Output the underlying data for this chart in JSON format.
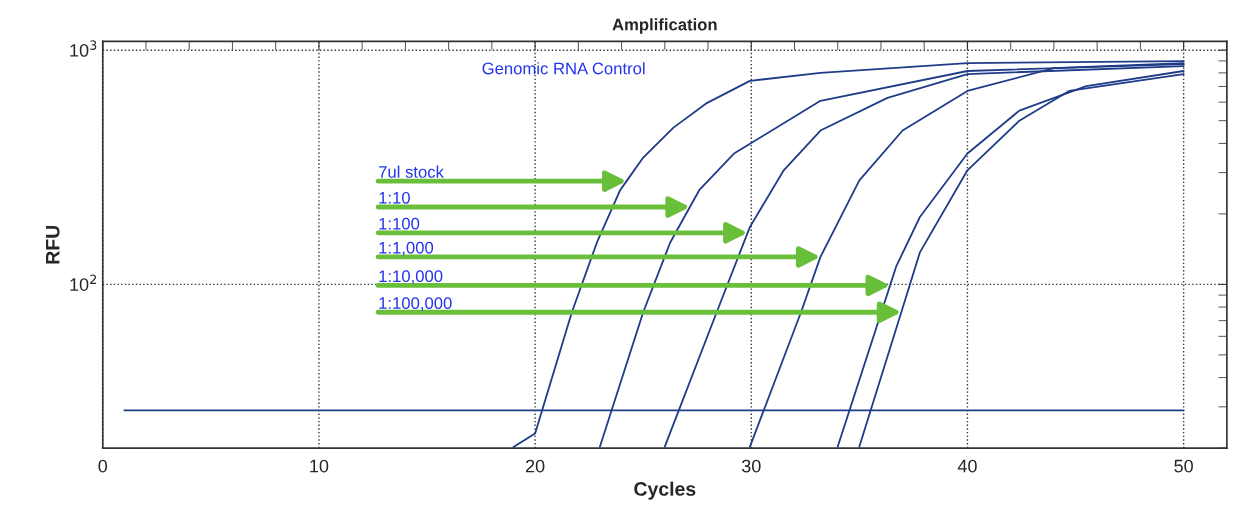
{
  "chart_data": {
    "type": "line",
    "title": "Amplification",
    "xlabel": "Cycles",
    "ylabel": "RFU",
    "log": "y",
    "grid": true,
    "marker": "none",
    "xlim": [
      0,
      52
    ],
    "ylim": [
      20,
      1090
    ],
    "xticks": [
      0,
      {
        "value": 2,
        "label": null
      },
      {
        "value": 4,
        "label": null
      },
      {
        "value": 6,
        "label": null
      },
      {
        "value": 8,
        "label": null
      },
      10,
      {
        "value": 12,
        "label": null
      },
      {
        "value": 14,
        "label": null
      },
      {
        "value": 16,
        "label": null
      },
      {
        "value": 18,
        "label": null
      },
      20,
      {
        "value": 22,
        "label": null
      },
      {
        "value": 24,
        "label": null
      },
      {
        "value": 26,
        "label": null
      },
      {
        "value": 28,
        "label": null
      },
      30,
      {
        "value": 32,
        "label": null
      },
      {
        "value": 34,
        "label": null
      },
      {
        "value": 36,
        "label": null
      },
      {
        "value": 38,
        "label": null
      },
      40,
      {
        "value": 42,
        "label": null
      },
      {
        "value": 44,
        "label": null
      },
      {
        "value": 46,
        "label": null
      },
      {
        "value": 48,
        "label": null
      },
      50,
      {
        "value": 52,
        "label": null
      }
    ],
    "yticks": [
      {
        "value": 20,
        "label": null
      },
      {
        "value": 30,
        "label": null
      },
      {
        "value": 40,
        "label": null
      },
      {
        "value": 50,
        "label": null
      },
      {
        "value": 60,
        "label": null
      },
      {
        "value": 70,
        "label": null
      },
      {
        "value": 80,
        "label": null
      },
      {
        "value": 90,
        "label": null
      },
      {
        "value": 100,
        "label": "10$^{2}$"
      },
      {
        "value": 200,
        "label": null
      },
      {
        "value": 300,
        "label": null
      },
      {
        "value": 400,
        "label": null
      },
      {
        "value": 500,
        "label": null
      },
      {
        "value": 600,
        "label": null
      },
      {
        "value": 700,
        "label": null
      },
      {
        "value": 800,
        "label": null
      },
      {
        "value": 900,
        "label": null
      },
      {
        "value": 1000,
        "label": "10$^{3}$"
      }
    ],
    "series": [
      {
        "color": "#1f3c88",
        "x": [
          19.0,
          20.0,
          21.7,
          22.86,
          23.94,
          24.23,
          25.0,
          26.4,
          27.96,
          29.94,
          33.2,
          40,
          50
        ],
        "values": [
          20.2,
          23.1,
          76,
          151,
          253,
          276,
          348,
          467,
          596,
          740,
          800,
          881,
          898
        ]
      },
      {
        "color": "#1f3c88",
        "x": [
          23.0,
          25.0,
          26.25,
          27.16,
          27.6,
          29.2,
          33.2,
          40,
          50
        ],
        "values": [
          20.3,
          76,
          151,
          214,
          253,
          362,
          608,
          815,
          872
        ]
      },
      {
        "color": "#1f3c88",
        "x": [
          26.0,
          28.4,
          29.83,
          29.94,
          31.5,
          33.2,
          36.3,
          40,
          50
        ],
        "values": [
          20.3,
          76,
          166,
          176,
          307,
          454,
          626,
          791,
          855
        ]
      },
      {
        "color": "#1f3c88",
        "x": [
          29.94,
          32.3,
          33.2,
          35.0,
          37.0,
          40,
          44,
          50
        ],
        "values": [
          20.3,
          76,
          131,
          278,
          454,
          670,
          839,
          881
        ]
      },
      {
        "color": "#1f3c88",
        "x": [
          34.0,
          36.42,
          36.7,
          37.8,
          40,
          42.4,
          45.5,
          50
        ],
        "values": [
          20.3,
          99,
          119,
          194,
          362,
          552,
          703,
          815
        ]
      },
      {
        "color": "#1f3c88",
        "x": [
          35.0,
          36.94,
          37.8,
          40,
          42.4,
          44.7,
          50
        ],
        "values": [
          20.3,
          76,
          137,
          307,
          500,
          670,
          791
        ]
      },
      {
        "color": "#1f3c88",
        "x": [
          1,
          50
        ],
        "values": [
          29,
          29
        ]
      }
    ],
    "annotations": [
      "Genomic RNA Control",
      {
        "text": "7ul stock",
        "x": 24.23,
        "y": 276
      },
      {
        "text": "1:10",
        "x": 27.16,
        "y": 214
      },
      {
        "text": "1:100",
        "x": 29.83,
        "y": 166
      },
      {
        "text": "1:1,000",
        "x": 33.2,
        "y": 131
      },
      {
        "text": "1:10,000",
        "x": 36.42,
        "y": 99
      },
      {
        "text": "1:100,000",
        "x": 36.94,
        "y": 76
      }
    ]
  }
}
